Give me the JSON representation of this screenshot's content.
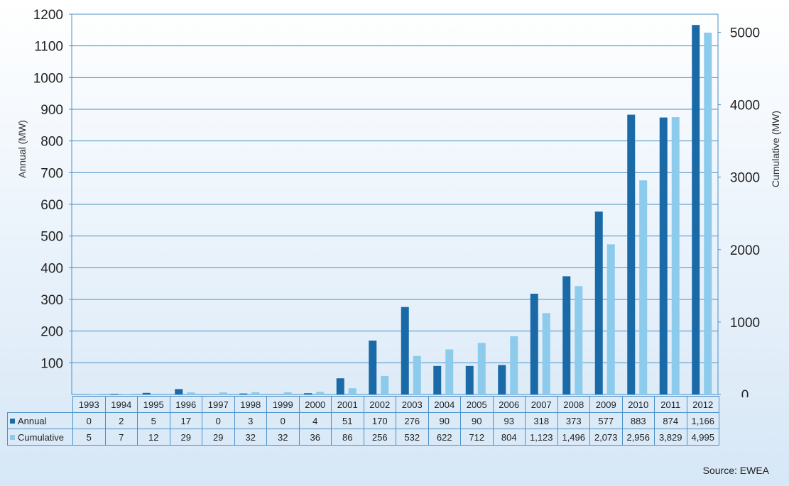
{
  "chart_data": {
    "type": "bar",
    "categories": [
      "1993",
      "1994",
      "1995",
      "1996",
      "1997",
      "1998",
      "1999",
      "2000",
      "2001",
      "2002",
      "2003",
      "2004",
      "2005",
      "2006",
      "2007",
      "2008",
      "2009",
      "2010",
      "2011",
      "2012"
    ],
    "series": [
      {
        "name": "Annual",
        "axis": "left",
        "color": "#1a6aa8",
        "values": [
          0,
          2,
          5,
          17,
          0,
          3,
          0,
          4,
          51,
          170,
          276,
          90,
          90,
          93,
          318,
          373,
          577,
          883,
          874,
          1166
        ],
        "labels": [
          "0",
          "2",
          "5",
          "17",
          "0",
          "3",
          "0",
          "4",
          "51",
          "170",
          "276",
          "90",
          "90",
          "93",
          "318",
          "373",
          "577",
          "883",
          "874",
          "1,166"
        ]
      },
      {
        "name": "Cumulative",
        "axis": "right",
        "color": "#8ccbec",
        "values": [
          5,
          7,
          12,
          29,
          29,
          32,
          32,
          36,
          86,
          256,
          532,
          622,
          712,
          804,
          1123,
          1496,
          2073,
          2956,
          3829,
          4995
        ],
        "labels": [
          "5",
          "7",
          "12",
          "29",
          "29",
          "32",
          "32",
          "36",
          "86",
          "256",
          "532",
          "622",
          "712",
          "804",
          "1,123",
          "1,496",
          "2,073",
          "2,956",
          "3,829",
          "4,995"
        ]
      }
    ],
    "ylabel": "Annual (MW)",
    "y2label": "Cumulative (MW)",
    "ylim": [
      0,
      1200
    ],
    "y2lim": [
      0,
      5250
    ],
    "yticks": [
      100,
      200,
      300,
      400,
      500,
      600,
      700,
      800,
      900,
      1000,
      1100,
      1200
    ],
    "y2ticks": [
      0,
      1000,
      2000,
      3000,
      4000,
      5000
    ],
    "grid": true,
    "legend": "table-bottom"
  },
  "source": "Source: EWEA"
}
